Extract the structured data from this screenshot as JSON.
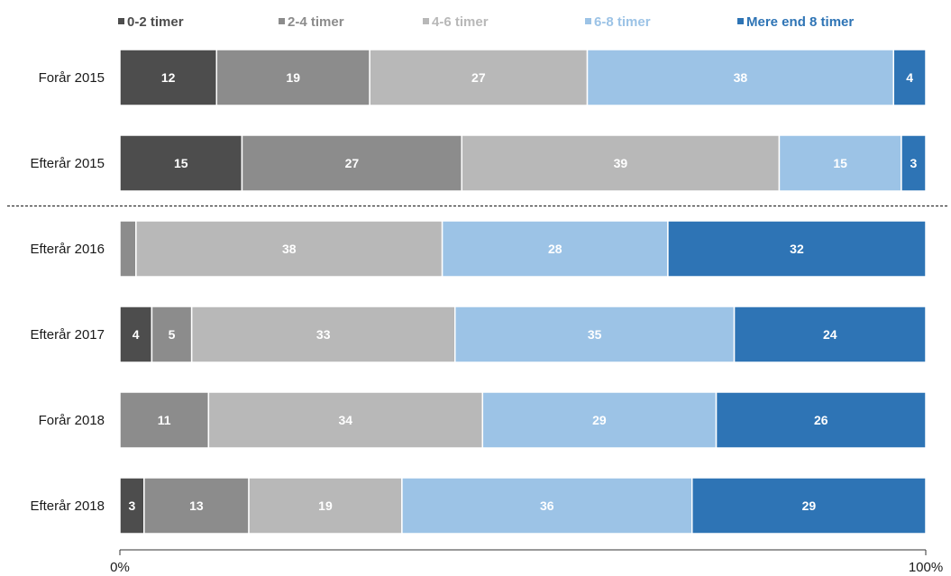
{
  "chart_data": {
    "type": "bar",
    "orientation": "horizontal",
    "stacked": true,
    "percent_scale": true,
    "categories": [
      "Forår 2015",
      "Efterår 2015",
      "Efterår 2016",
      "Efterår 2017",
      "Forår 2018",
      "Efterår 2018"
    ],
    "series": [
      {
        "name": "0-2 timer",
        "color": "#4d4d4d",
        "values": [
          12,
          15,
          0,
          4,
          0,
          3
        ]
      },
      {
        "name": "2-4 timer",
        "color": "#8c8c8c",
        "values": [
          19,
          27,
          2,
          5,
          11,
          13
        ]
      },
      {
        "name": "4-6 timer",
        "color": "#b8b8b8",
        "values": [
          27,
          39,
          38,
          33,
          34,
          19
        ]
      },
      {
        "name": "6-8 timer",
        "color": "#9cc3e6",
        "values": [
          38,
          15,
          28,
          35,
          29,
          36
        ]
      },
      {
        "name": "Mere end 8 timer",
        "color": "#2e74b5",
        "values": [
          4,
          3,
          32,
          24,
          26,
          29
        ]
      }
    ],
    "labels": [
      [
        "12",
        "19",
        "27",
        "38",
        "4"
      ],
      [
        "15",
        "27",
        "39",
        "15",
        "3"
      ],
      [
        "",
        "",
        "38",
        "28",
        "32"
      ],
      [
        "4",
        "5",
        "33",
        "35",
        "24"
      ],
      [
        "",
        "11",
        "34",
        "29",
        "26"
      ],
      [
        "3",
        "13",
        "19",
        "36",
        "29"
      ]
    ],
    "xlim": [
      0,
      100
    ],
    "xticks": [
      "0%",
      "100%"
    ],
    "legend_position": "top",
    "divider_after_category": 1,
    "divider_style": "dashed"
  }
}
